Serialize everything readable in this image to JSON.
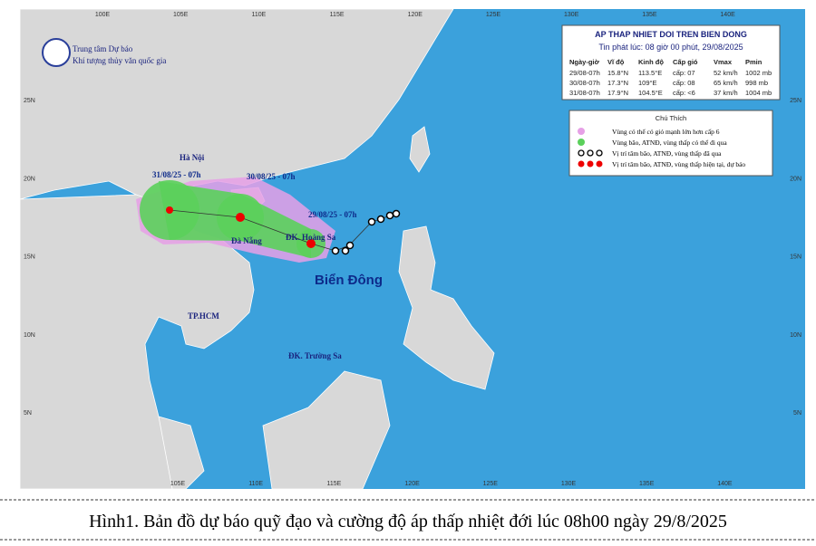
{
  "map": {
    "lon_top": [
      "100E",
      "105E",
      "110E",
      "115E",
      "120E",
      "125E",
      "130E",
      "135E",
      "140E"
    ],
    "lon_bottom": [
      "105E",
      "110E",
      "115E",
      "120E",
      "125E",
      "130E",
      "135E",
      "140E"
    ],
    "lat_left": [
      "25N",
      "20N",
      "15N",
      "10N",
      "5N"
    ],
    "lat_right": [
      "25N",
      "20N",
      "15N",
      "10N",
      "5N"
    ],
    "logo": [
      "Trung tâm Dự báo",
      "Khí tượng thủy văn quốc gia"
    ],
    "places": {
      "hanoi": "Hà Nội",
      "danang": "Đà Nẵng",
      "hoangsa": "ĐK. Hoàng Sa",
      "hcm": "TP.HCM",
      "truongsa": "ĐK. Trường Sa",
      "biendong": "Biển Đông"
    },
    "times": [
      "31/08/25 - 07h",
      "30/08/25 - 07h",
      "29/08/25 - 07h"
    ]
  },
  "info": {
    "title": "AP THAP NHIET DOI TREN BIEN DONG",
    "issued": "Tin phát lúc: 08 giờ 00 phút, 29/08/2025",
    "header": [
      "Ngày-giờ",
      "Vĩ độ",
      "Kinh độ",
      "Cấp gió",
      "Vmax",
      "Pmin"
    ],
    "rows": [
      [
        "29/08-07h",
        "15.8°N",
        "113.5°E",
        "cấp: 07",
        "52 km/h",
        "1002 mb"
      ],
      [
        "30/08-07h",
        "17.3°N",
        "109°E",
        "cấp: 08",
        "65 km/h",
        "998 mb"
      ],
      [
        "31/08-07h",
        "17.9°N",
        "104.5°E",
        "cấp: <6",
        "37 km/h",
        "1004 mb"
      ]
    ]
  },
  "legend": {
    "title": "Chú Thích",
    "items": [
      "Vùng có thể có gió mạnh lớn hơn cấp 6",
      "Vùng bão, ATNĐ, vùng thấp có thể đi qua",
      "Vị trí tâm bão, ATNĐ, vùng thấp đã qua",
      "Vị trí tâm bão, ATNĐ, vùng thấp hiện tại, dự báo"
    ]
  },
  "caption": "Hình1. Bản đồ dự báo quỹ đạo và cường độ áp thấp nhiệt đới lúc 08h00 ngày 29/8/2025"
}
